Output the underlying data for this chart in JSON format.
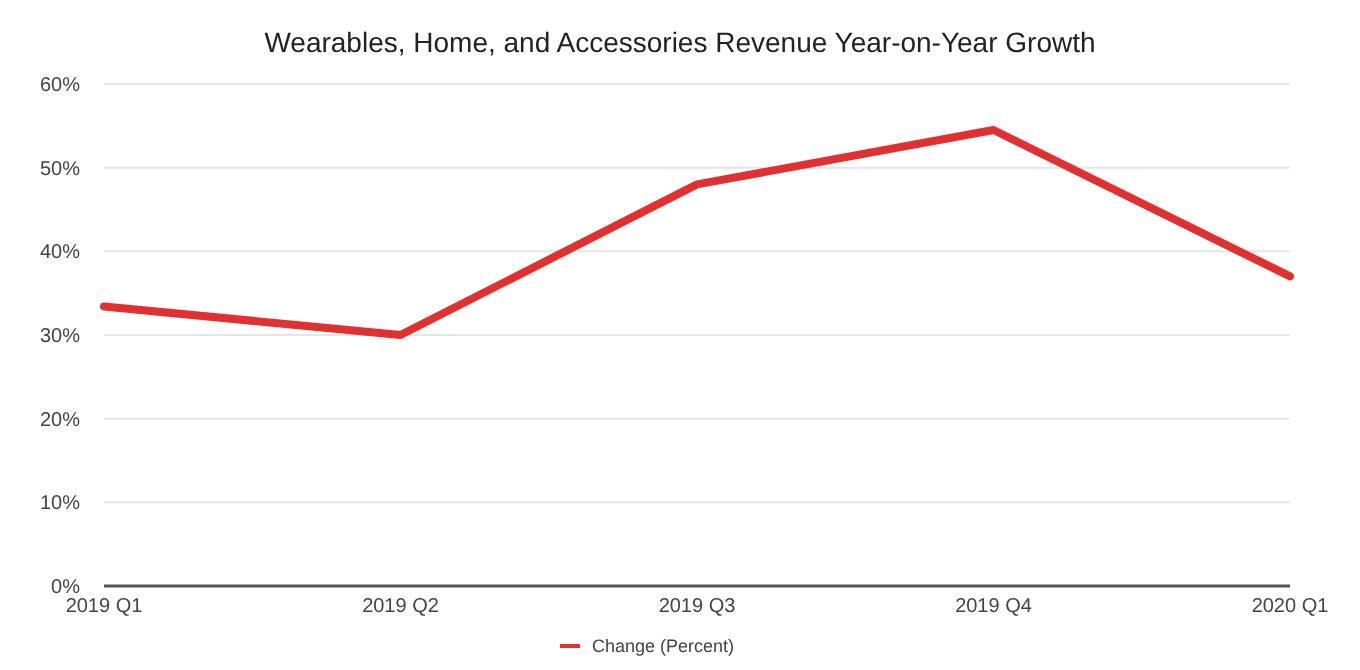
{
  "chart_data": {
    "type": "line",
    "title": "Wearables, Home, and Accessories Revenue Year-on-Year Growth",
    "categories": [
      "2019 Q1",
      "2019 Q2",
      "2019 Q3",
      "2019 Q4",
      "2020 Q1"
    ],
    "series": [
      {
        "name": "Change (Percent)",
        "color": "#e03030",
        "values": [
          33.4,
          30,
          48,
          54.5,
          37
        ]
      }
    ],
    "ylim": [
      0,
      60
    ],
    "yticks": [
      {
        "value": 0,
        "label": "0%"
      },
      {
        "value": 10,
        "label": "10%"
      },
      {
        "value": 20,
        "label": "20%"
      },
      {
        "value": 30,
        "label": "30%"
      },
      {
        "value": 40,
        "label": "40%"
      },
      {
        "value": 50,
        "label": "50%"
      },
      {
        "value": 60,
        "label": "60%"
      }
    ],
    "grid": "y",
    "legend": "bottom",
    "marker": "none",
    "line_style": "solid"
  }
}
